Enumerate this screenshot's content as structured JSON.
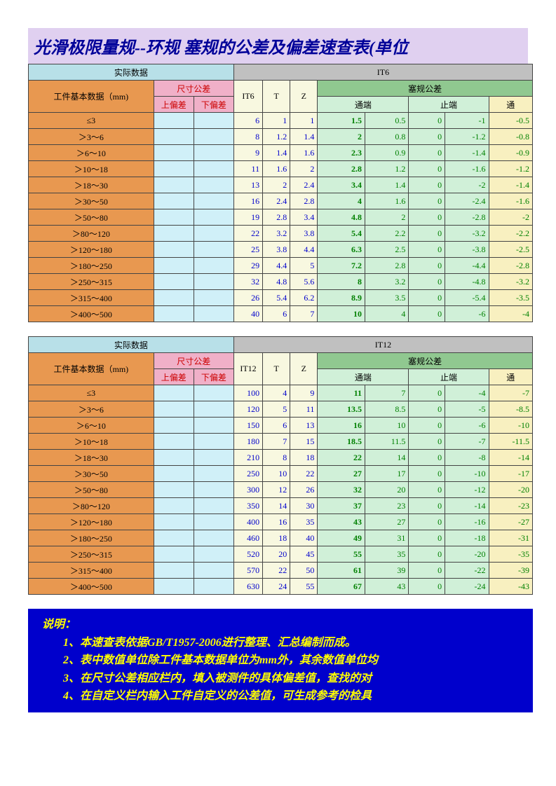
{
  "title": "光滑极限量规--环规 塞规的公差及偏差速查表(单位",
  "section1": {
    "hdr_actual": "实际数据",
    "hdr_it": "IT6",
    "hdr_base": "工件基本数据（mm)",
    "hdr_dim": "尺寸公差",
    "hdr_up": "上偏差",
    "hdr_low": "下偏差",
    "hdr_it6": "IT6",
    "hdr_t": "T",
    "hdr_z": "Z",
    "hdr_plug": "塞规公差",
    "hdr_go": "通端",
    "hdr_nogo": "止端",
    "hdr_go2": "通"
  },
  "section2": {
    "hdr_actual": "实际数据",
    "hdr_it": "IT12",
    "hdr_base": "工件基本数据（mm)",
    "hdr_dim": "尺寸公差",
    "hdr_up": "上偏差",
    "hdr_low": "下偏差",
    "hdr_it12": "IT12",
    "hdr_t": "T",
    "hdr_z": "Z",
    "hdr_plug": "塞规公差",
    "hdr_go": "通端",
    "hdr_nogo": "止端",
    "hdr_go2": "通"
  },
  "ranges": [
    "≤3",
    "＞3～6",
    "＞6～10",
    "＞10～18",
    "＞18～30",
    "＞30～50",
    "＞50～80",
    "＞80～120",
    "＞120～180",
    "＞180～250",
    "＞250～315",
    "＞315～400",
    "＞400～500"
  ],
  "t1": [
    [
      6,
      1,
      1,
      "1.5",
      "0.5",
      0,
      "-1",
      "-0.5"
    ],
    [
      8,
      "1.2",
      "1.4",
      "2",
      "0.8",
      0,
      "-1.2",
      "-0.8"
    ],
    [
      9,
      "1.4",
      "1.6",
      "2.3",
      "0.9",
      0,
      "-1.4",
      "-0.9"
    ],
    [
      11,
      "1.6",
      "2",
      "2.8",
      "1.2",
      0,
      "-1.6",
      "-1.2"
    ],
    [
      13,
      "2",
      "2.4",
      "3.4",
      "1.4",
      0,
      "-2",
      "-1.4"
    ],
    [
      16,
      "2.4",
      "2.8",
      "4",
      "1.6",
      0,
      "-2.4",
      "-1.6"
    ],
    [
      19,
      "2.8",
      "3.4",
      "4.8",
      "2",
      0,
      "-2.8",
      "-2"
    ],
    [
      22,
      "3.2",
      "3.8",
      "5.4",
      "2.2",
      0,
      "-3.2",
      "-2.2"
    ],
    [
      25,
      "3.8",
      "4.4",
      "6.3",
      "2.5",
      0,
      "-3.8",
      "-2.5"
    ],
    [
      29,
      "4.4",
      "5",
      "7.2",
      "2.8",
      0,
      "-4.4",
      "-2.8"
    ],
    [
      32,
      "4.8",
      "5.6",
      "8",
      "3.2",
      0,
      "-4.8",
      "-3.2"
    ],
    [
      26,
      "5.4",
      "6.2",
      "8.9",
      "3.5",
      0,
      "-5.4",
      "-3.5"
    ],
    [
      40,
      "6",
      "7",
      "10",
      "4",
      0,
      "-6",
      "-4"
    ]
  ],
  "t2": [
    [
      100,
      4,
      9,
      11,
      7,
      0,
      -4,
      -7
    ],
    [
      120,
      5,
      11,
      "13.5",
      "8.5",
      0,
      -5,
      "-8.5"
    ],
    [
      150,
      6,
      13,
      16,
      10,
      0,
      -6,
      -10
    ],
    [
      180,
      7,
      15,
      "18.5",
      "11.5",
      0,
      -7,
      "-11.5"
    ],
    [
      210,
      8,
      18,
      22,
      14,
      0,
      -8,
      -14
    ],
    [
      250,
      10,
      22,
      27,
      17,
      0,
      -10,
      -17
    ],
    [
      300,
      12,
      26,
      32,
      20,
      0,
      -12,
      -20
    ],
    [
      350,
      14,
      30,
      37,
      23,
      0,
      -14,
      -23
    ],
    [
      400,
      16,
      35,
      43,
      27,
      0,
      -16,
      -27
    ],
    [
      460,
      18,
      40,
      49,
      31,
      0,
      -18,
      -31
    ],
    [
      520,
      20,
      45,
      55,
      35,
      0,
      -20,
      -35
    ],
    [
      570,
      22,
      50,
      61,
      39,
      0,
      -22,
      -39
    ],
    [
      630,
      24,
      55,
      67,
      43,
      0,
      -24,
      -43
    ]
  ],
  "notes": {
    "h": "说明：",
    "l1": "1、本速查表依据GB/T1957-2006进行整理、汇总编制而成。",
    "l2": "2、表中数值单位除工件基本数据单位为mm外，其余数值单位均",
    "l3": "3、在尺寸公差相应栏内，填入被测件的具体偏差值，查找的对",
    "l4": "4、在自定义栏内输入工件自定义的公差值，可生成参考的检具"
  }
}
